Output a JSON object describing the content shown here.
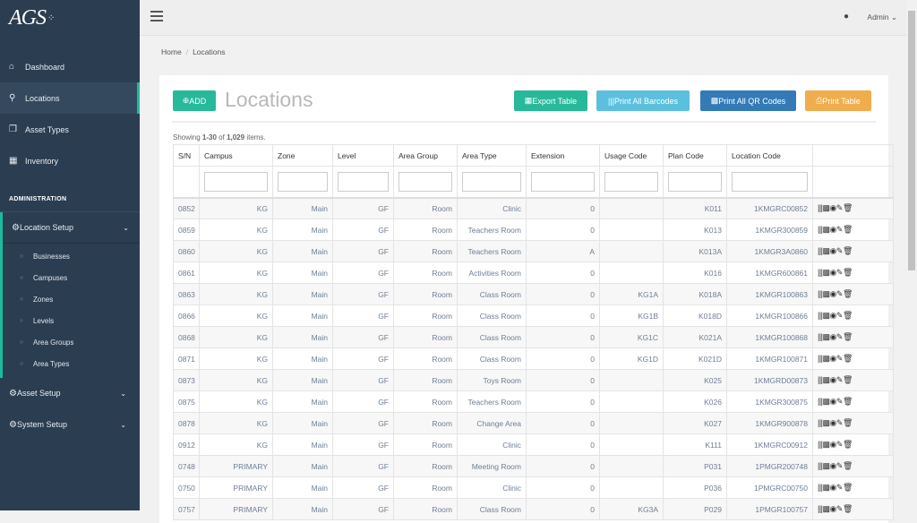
{
  "brand": {
    "logo": "AGS"
  },
  "sidebar": {
    "items": [
      {
        "label": "Dashboard",
        "icon": "home-icon"
      },
      {
        "label": "Locations",
        "icon": "map-marker-icon",
        "active": true
      },
      {
        "label": "Asset Types",
        "icon": "cubes-icon"
      },
      {
        "label": "Inventory",
        "icon": "qrcode-icon"
      }
    ],
    "section": "ADMINISTRATION",
    "location_setup": {
      "label": "Location Setup",
      "children": [
        "Businesses",
        "Campuses",
        "Zones",
        "Levels",
        "Area Groups",
        "Area Types"
      ]
    },
    "asset_setup": "Asset Setup",
    "system_setup": "System Setup"
  },
  "topbar": {
    "user": "Admin"
  },
  "breadcrumb": {
    "home": "Home",
    "current": "Locations"
  },
  "page": {
    "title": "Locations",
    "add": "ADD",
    "export": "Export Table",
    "print_barcodes": "Print All Barcodes",
    "print_qr": "Print All QR Codes",
    "print_table": "Print Table",
    "summary_prefix": "Showing ",
    "summary_range": "1-30",
    "summary_of": " of ",
    "summary_total": "1,029",
    "summary_suffix": " items."
  },
  "colors": {
    "sidebar": "#2b3d51",
    "accent": "#1abc9c",
    "export": "#26b99a",
    "barcodes": "#5bc0de",
    "qr": "#337ab7",
    "print": "#f0ad4e"
  },
  "table": {
    "columns": [
      "S/N",
      "Campus",
      "Zone",
      "Level",
      "Area Group",
      "Area Type",
      "Extension",
      "Usage Code",
      "Plan Code",
      "Location Code",
      ""
    ],
    "rows": [
      [
        "0852",
        "KG",
        "Main",
        "GF",
        "Room",
        "Clinic",
        "0",
        "",
        "K011",
        "1KMGRC00852"
      ],
      [
        "0859",
        "KG",
        "Main",
        "GF",
        "Room",
        "Teachers Room",
        "0",
        "",
        "K013",
        "1KMGR300859"
      ],
      [
        "0860",
        "KG",
        "Main",
        "GF",
        "Room",
        "Teachers Room",
        "A",
        "",
        "K013A",
        "1KMGR3A0860"
      ],
      [
        "0861",
        "KG",
        "Main",
        "GF",
        "Room",
        "Activities Room",
        "0",
        "",
        "K016",
        "1KMGR600861"
      ],
      [
        "0863",
        "KG",
        "Main",
        "GF",
        "Room",
        "Class Room",
        "0",
        "KG1A",
        "K018A",
        "1KMGR100863"
      ],
      [
        "0866",
        "KG",
        "Main",
        "GF",
        "Room",
        "Class Room",
        "0",
        "KG1B",
        "K018D",
        "1KMGR100866"
      ],
      [
        "0868",
        "KG",
        "Main",
        "GF",
        "Room",
        "Class Room",
        "0",
        "KG1C",
        "K021A",
        "1KMGR100868"
      ],
      [
        "0871",
        "KG",
        "Main",
        "GF",
        "Room",
        "Class Room",
        "0",
        "KG1D",
        "K021D",
        "1KMGR100871"
      ],
      [
        "0873",
        "KG",
        "Main",
        "GF",
        "Room",
        "Toys Room",
        "0",
        "",
        "K025",
        "1KMGRD00873"
      ],
      [
        "0875",
        "KG",
        "Main",
        "GF",
        "Room",
        "Teachers Room",
        "0",
        "",
        "K026",
        "1KMGR300875"
      ],
      [
        "0878",
        "KG",
        "Main",
        "GF",
        "Room",
        "Change Area",
        "0",
        "",
        "K027",
        "1KMGR900878"
      ],
      [
        "0912",
        "KG",
        "Main",
        "GF",
        "Room",
        "Clinic",
        "0",
        "",
        "K111",
        "1KMGRC00912"
      ],
      [
        "0748",
        "PRIMARY",
        "Main",
        "GF",
        "Room",
        "Meeting Room",
        "0",
        "",
        "P031",
        "1PMGR200748"
      ],
      [
        "0750",
        "PRIMARY",
        "Main",
        "GF",
        "Room",
        "Clinic",
        "0",
        "",
        "P036",
        "1PMGRC00750"
      ],
      [
        "0757",
        "PRIMARY",
        "Main",
        "GF",
        "Room",
        "Class Room",
        "0",
        "KG3A",
        "P029",
        "1PMGR100757"
      ]
    ],
    "row_actions": [
      "barcode-icon",
      "qrcode-icon",
      "eye-icon",
      "pencil-icon",
      "trash-icon"
    ]
  }
}
